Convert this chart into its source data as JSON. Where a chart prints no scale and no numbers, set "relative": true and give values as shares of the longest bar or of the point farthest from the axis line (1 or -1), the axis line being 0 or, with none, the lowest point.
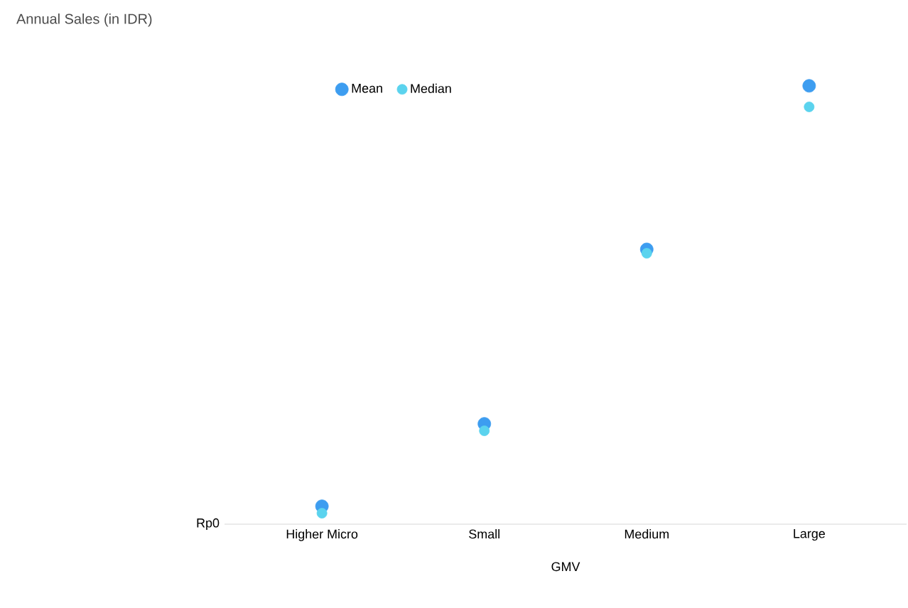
{
  "chart_data": {
    "type": "scatter",
    "xlabel": "GMV",
    "categories": [
      "Higher Micro",
      "Small",
      "Medium",
      "Large"
    ],
    "relative": true,
    "annotations": [
      "Annual Sales (in IDR)",
      "Rp0"
    ],
    "legend": "top",
    "series": [
      {
        "name": "Mean",
        "color": "#3d9df0",
        "values": [
          0.041,
          0.229,
          0.627,
          1
        ]
      },
      {
        "name": "Median",
        "color": "#5bd3ee",
        "values": [
          0.025,
          0.213,
          0.618,
          0.952
        ]
      }
    ]
  }
}
